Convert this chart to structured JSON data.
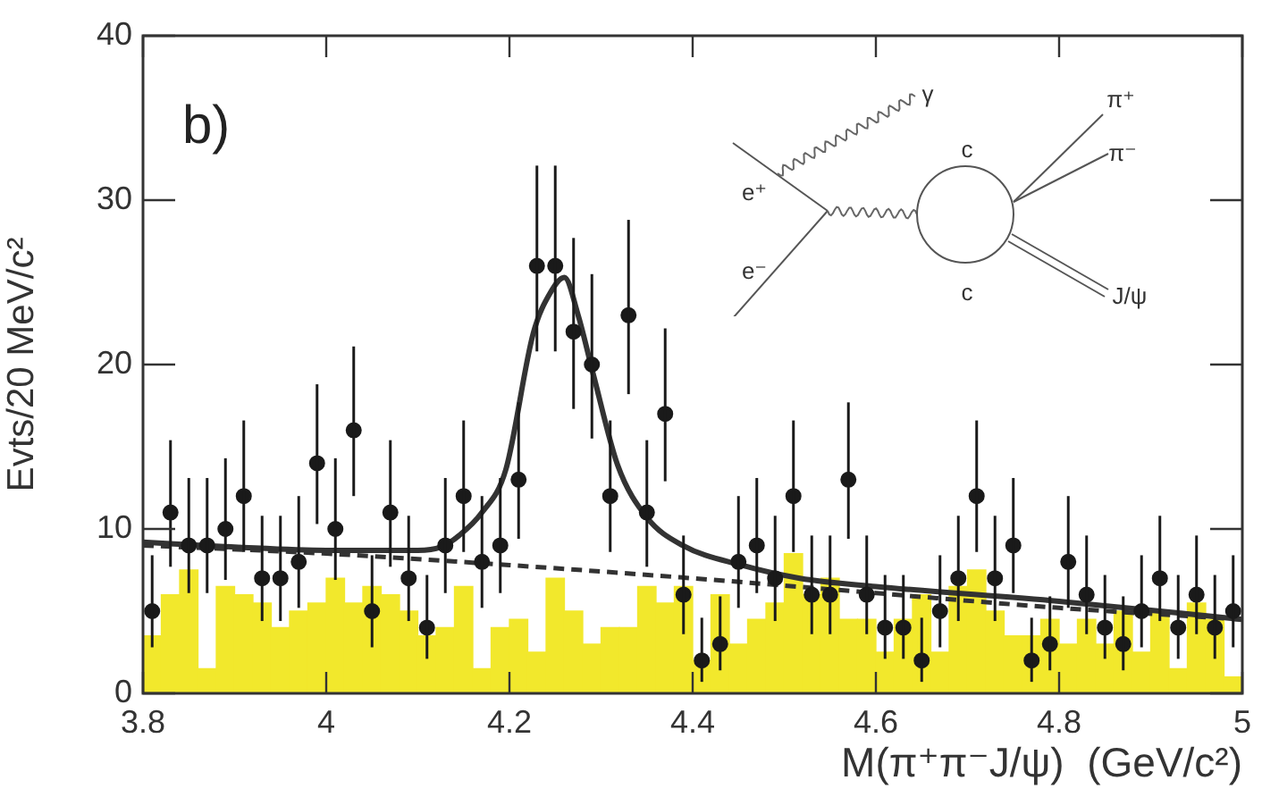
{
  "chart_data": {
    "type": "scatter",
    "xlabel": "M(π⁺π⁻J/ψ)  (GeV/c²)",
    "ylabel": "Evts/20 MeV/c²",
    "annotations": [
      "b)",
      "γ",
      "e⁺",
      "e⁻",
      "c",
      "c",
      "π⁺",
      "π⁻",
      "J/ψ"
    ],
    "xlim": [
      3.8,
      5
    ],
    "xticks": [
      3.8,
      4,
      4.2,
      4.4,
      4.6,
      4.8,
      5
    ],
    "ylim": [
      0,
      40
    ],
    "yticks": [
      0,
      10,
      20,
      30,
      40
    ],
    "grid": false,
    "legend": false,
    "series": [
      {
        "type": "histogram",
        "color": "#f2e82c",
        "bins": [
          3.8,
          3.82,
          3.84,
          3.86,
          3.88,
          3.9,
          3.92,
          3.94,
          3.96,
          3.98,
          4.0,
          4.02,
          4.04,
          4.06,
          4.08,
          4.1,
          4.12,
          4.14,
          4.16,
          4.18,
          4.2,
          4.22,
          4.24,
          4.26,
          4.28,
          4.3,
          4.32,
          4.34,
          4.36,
          4.38,
          4.4,
          4.42,
          4.44,
          4.46,
          4.48,
          4.5,
          4.52,
          4.54,
          4.56,
          4.58,
          4.6,
          4.62,
          4.64,
          4.66,
          4.68,
          4.7,
          4.72,
          4.74,
          4.76,
          4.78,
          4.8,
          4.82,
          4.84,
          4.86,
          4.88,
          4.9,
          4.92,
          4.94,
          4.96,
          4.98,
          5.0
        ],
        "values": [
          3.5,
          6,
          7.5,
          1.5,
          6.5,
          6,
          5.5,
          4,
          5,
          5.5,
          7,
          5.5,
          6.5,
          6,
          5,
          3.5,
          4,
          6.5,
          1.5,
          4,
          4.5,
          2.5,
          7,
          5,
          3,
          4,
          4,
          6.5,
          5.5,
          6.5,
          2,
          6,
          3,
          4.5,
          5.5,
          8.5,
          6,
          7,
          4.5,
          4.5,
          2.5,
          4.5,
          6,
          2.5,
          6.5,
          7.5,
          5,
          3.5,
          3.5,
          4.5,
          3,
          4.5,
          3,
          5,
          2.5,
          5,
          1.5,
          5.5,
          4.5,
          1
        ]
      },
      {
        "color": "#1a1a1a",
        "marker": "circle",
        "x": [
          3.81,
          3.83,
          3.85,
          3.87,
          3.89,
          3.91,
          3.93,
          3.95,
          3.97,
          3.99,
          4.01,
          4.03,
          4.05,
          4.07,
          4.09,
          4.11,
          4.13,
          4.15,
          4.17,
          4.19,
          4.21,
          4.23,
          4.25,
          4.27,
          4.29,
          4.31,
          4.33,
          4.35,
          4.37,
          4.39,
          4.41,
          4.43,
          4.45,
          4.47,
          4.49,
          4.51,
          4.53,
          4.55,
          4.57,
          4.59,
          4.61,
          4.63,
          4.65,
          4.67,
          4.69,
          4.71,
          4.73,
          4.75,
          4.77,
          4.79,
          4.81,
          4.83,
          4.85,
          4.87,
          4.89,
          4.91,
          4.93,
          4.95,
          4.97,
          4.99
        ],
        "values": [
          5,
          11,
          9,
          9,
          10,
          12,
          7,
          7,
          8,
          14,
          10,
          16,
          5,
          11,
          7,
          4,
          9,
          12,
          8,
          9,
          13,
          26,
          26,
          22,
          20,
          12,
          23,
          11,
          17,
          6,
          2,
          3,
          8,
          9,
          7,
          12,
          6,
          6,
          13,
          6,
          4,
          4,
          2,
          5,
          7,
          12,
          7,
          9,
          2,
          3,
          8,
          6,
          4,
          3,
          5,
          7,
          4,
          6,
          4,
          5
        ],
        "errors": [
          [
            2.8,
            8.4
          ],
          [
            7.7,
            15.4
          ],
          [
            6.1,
            13.1
          ],
          [
            6.1,
            13.1
          ],
          [
            6.9,
            14.3
          ],
          [
            8.6,
            16.6
          ],
          [
            4.4,
            10.8
          ],
          [
            4.4,
            10.8
          ],
          [
            5.2,
            12.0
          ],
          [
            10.3,
            18.8
          ],
          [
            6.9,
            14.3
          ],
          [
            12.0,
            21.1
          ],
          [
            2.8,
            8.4
          ],
          [
            7.7,
            15.4
          ],
          [
            4.4,
            10.8
          ],
          [
            2.1,
            7.2
          ],
          [
            6.1,
            13.1
          ],
          [
            8.6,
            16.6
          ],
          [
            5.2,
            12.0
          ],
          [
            6.1,
            13.1
          ],
          [
            9.4,
            17.7
          ],
          [
            20.8,
            32.1
          ],
          [
            20.8,
            32.1
          ],
          [
            17.3,
            27.7
          ],
          [
            15.5,
            25.5
          ],
          [
            8.6,
            16.6
          ],
          [
            18.2,
            28.8
          ],
          [
            7.7,
            15.4
          ],
          [
            12.9,
            22.2
          ],
          [
            3.6,
            9.6
          ],
          [
            0.7,
            4.6
          ],
          [
            1.4,
            5.9
          ],
          [
            5.2,
            12.0
          ],
          [
            6.1,
            13.1
          ],
          [
            4.4,
            10.8
          ],
          [
            8.6,
            16.6
          ],
          [
            3.6,
            9.6
          ],
          [
            3.6,
            9.6
          ],
          [
            9.4,
            17.7
          ],
          [
            3.6,
            9.6
          ],
          [
            2.1,
            7.2
          ],
          [
            2.1,
            7.2
          ],
          [
            0.7,
            4.6
          ],
          [
            2.8,
            8.4
          ],
          [
            4.4,
            10.8
          ],
          [
            8.6,
            16.6
          ],
          [
            4.4,
            10.8
          ],
          [
            6.1,
            13.1
          ],
          [
            0.7,
            4.6
          ],
          [
            1.4,
            5.9
          ],
          [
            5.2,
            12.0
          ],
          [
            3.6,
            9.6
          ],
          [
            2.1,
            7.2
          ],
          [
            1.4,
            5.9
          ],
          [
            2.8,
            8.4
          ],
          [
            4.4,
            10.8
          ],
          [
            2.1,
            7.2
          ],
          [
            3.6,
            9.6
          ],
          [
            2.1,
            7.2
          ],
          [
            2.8,
            8.4
          ]
        ]
      },
      {
        "type": "line",
        "color": "#333333",
        "line_style": "solid",
        "marker": "none",
        "x": [
          3.8,
          3.9,
          4.0,
          4.1,
          4.125,
          4.145,
          4.17,
          4.196,
          4.226,
          4.245,
          4.26,
          4.275,
          4.292,
          4.318,
          4.35,
          4.389,
          4.453,
          4.517,
          4.6,
          4.8,
          5.0
        ],
        "values": [
          9.2,
          8.9,
          8.7,
          8.7,
          8.9,
          9.6,
          11.0,
          13.6,
          21.9,
          24.4,
          25.3,
          23,
          19.3,
          13.9,
          10.7,
          9,
          7.8,
          7,
          6.5,
          5.6,
          4.5
        ]
      },
      {
        "type": "line",
        "color": "#333333",
        "line_style": "dashed",
        "marker": "none",
        "x": [
          3.8,
          4.0,
          4.2,
          4.4,
          4.6,
          4.8,
          5.0
        ],
        "values": [
          9.0,
          8.5,
          7.8,
          7.0,
          6.1,
          5.2,
          4.5
        ]
      }
    ]
  }
}
